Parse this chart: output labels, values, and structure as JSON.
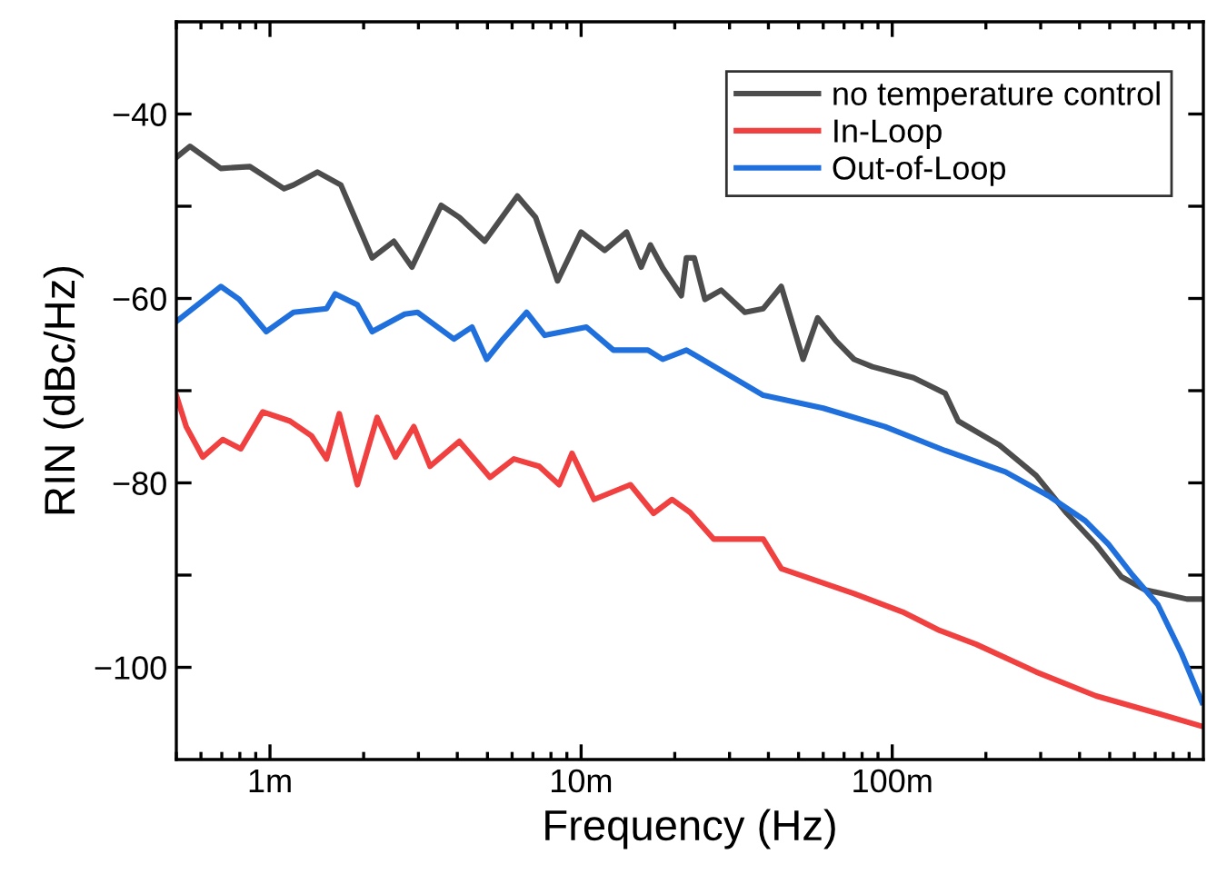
{
  "chart_data": {
    "type": "line",
    "xlabel": "Frequency (Hz)",
    "ylabel": "RIN (dBc/Hz)",
    "log": "x",
    "xlim": [
      0.5,
      1000
    ],
    "ylim": [
      -110,
      -30
    ],
    "xticks": [
      {
        "value": 1,
        "label": "1m"
      },
      {
        "value": 10,
        "label": "10m"
      },
      {
        "value": 100,
        "label": "100m"
      }
    ],
    "yticks": [
      {
        "value": -100,
        "label": "−100"
      },
      {
        "value": -90,
        "label": null
      },
      {
        "value": -80,
        "label": "−80"
      },
      {
        "value": -70,
        "label": null
      },
      {
        "value": -60,
        "label": "−60"
      },
      {
        "value": -50,
        "label": null
      },
      {
        "value": -40,
        "label": "−40"
      }
    ],
    "grid": false,
    "legend": "top right",
    "line_style": "solid",
    "marker": "none",
    "series": [
      {
        "name": "no temperature control",
        "color": "#4d4d4d",
        "x": [
          0.5,
          0.553,
          0.695,
          0.862,
          1.11,
          1.19,
          1.42,
          1.69,
          2.13,
          2.5,
          2.86,
          3.55,
          4.06,
          4.9,
          6.24,
          7.14,
          8.4,
          10,
          11.9,
          14,
          15.6,
          16.7,
          18.3,
          21,
          21.8,
          23.1,
          25,
          28.2,
          33.6,
          38.5,
          44,
          51.7,
          57.6,
          65.9,
          75.4,
          86.3,
          117,
          148,
          163,
          221,
          290,
          364,
          452,
          546,
          650,
          885,
          990
        ],
        "values": [
          -44.7,
          -43.5,
          -45.9,
          -45.7,
          -48.1,
          -47.7,
          -46.3,
          -47.7,
          -55.6,
          -53.8,
          -56.6,
          -49.9,
          -51.2,
          -53.8,
          -48.9,
          -51.2,
          -58.1,
          -52.8,
          -54.8,
          -52.8,
          -56.6,
          -54.2,
          -56.7,
          -59.7,
          -55.6,
          -55.6,
          -60.1,
          -59.1,
          -61.5,
          -61.1,
          -58.7,
          -66.6,
          -62.1,
          -64.6,
          -66.6,
          -67.4,
          -68.6,
          -70.3,
          -73.3,
          -75.9,
          -79.2,
          -83.3,
          -86.7,
          -90.2,
          -91.6,
          -92.6,
          -92.6
        ]
      },
      {
        "name": "In-Loop",
        "color": "#f04040",
        "x": [
          0.5,
          0.538,
          0.608,
          0.705,
          0.806,
          0.948,
          1.16,
          1.36,
          1.52,
          1.67,
          1.91,
          2.21,
          2.53,
          2.9,
          3.27,
          4.06,
          5.1,
          6.08,
          7.33,
          8.5,
          9.35,
          11,
          14.4,
          17.1,
          19.6,
          22.4,
          26.7,
          38.5,
          44,
          75.4,
          108,
          142,
          186,
          290,
          452,
          714,
          990
        ],
        "values": [
          -70.5,
          -73.9,
          -77.2,
          -75.3,
          -76.3,
          -72.3,
          -73.3,
          -74.9,
          -77.4,
          -72.5,
          -80.2,
          -72.9,
          -77.2,
          -73.9,
          -78.2,
          -75.5,
          -79.4,
          -77.4,
          -78.2,
          -80.2,
          -76.8,
          -81.8,
          -80.2,
          -83.3,
          -81.8,
          -83.2,
          -86.1,
          -86.1,
          -89.3,
          -92.0,
          -94.0,
          -96.0,
          -97.5,
          -100.5,
          -103.1,
          -105.0,
          -106.4
        ]
      },
      {
        "name": "Out-of-Loop",
        "color": "#1f6fdc",
        "x": [
          0.5,
          0.695,
          0.796,
          0.973,
          1.19,
          1.52,
          1.62,
          1.91,
          2.13,
          2.71,
          2.98,
          3.9,
          4.46,
          4.97,
          5.61,
          6.68,
          7.64,
          10.4,
          12.7,
          16.4,
          18.3,
          21.8,
          38.5,
          60,
          94.8,
          148,
          231,
          318,
          417,
          497,
          592,
          714,
          851,
          990
        ],
        "values": [
          -62.5,
          -58.7,
          -60.1,
          -63.6,
          -61.5,
          -61.1,
          -59.5,
          -60.7,
          -63.6,
          -61.7,
          -61.5,
          -64.4,
          -63.1,
          -66.6,
          -64.4,
          -61.5,
          -64.0,
          -63.1,
          -65.6,
          -65.6,
          -66.6,
          -65.6,
          -70.5,
          -71.9,
          -73.9,
          -76.5,
          -78.8,
          -81.4,
          -84.1,
          -86.7,
          -90.0,
          -93.2,
          -98.5,
          -103.8
        ]
      }
    ]
  }
}
